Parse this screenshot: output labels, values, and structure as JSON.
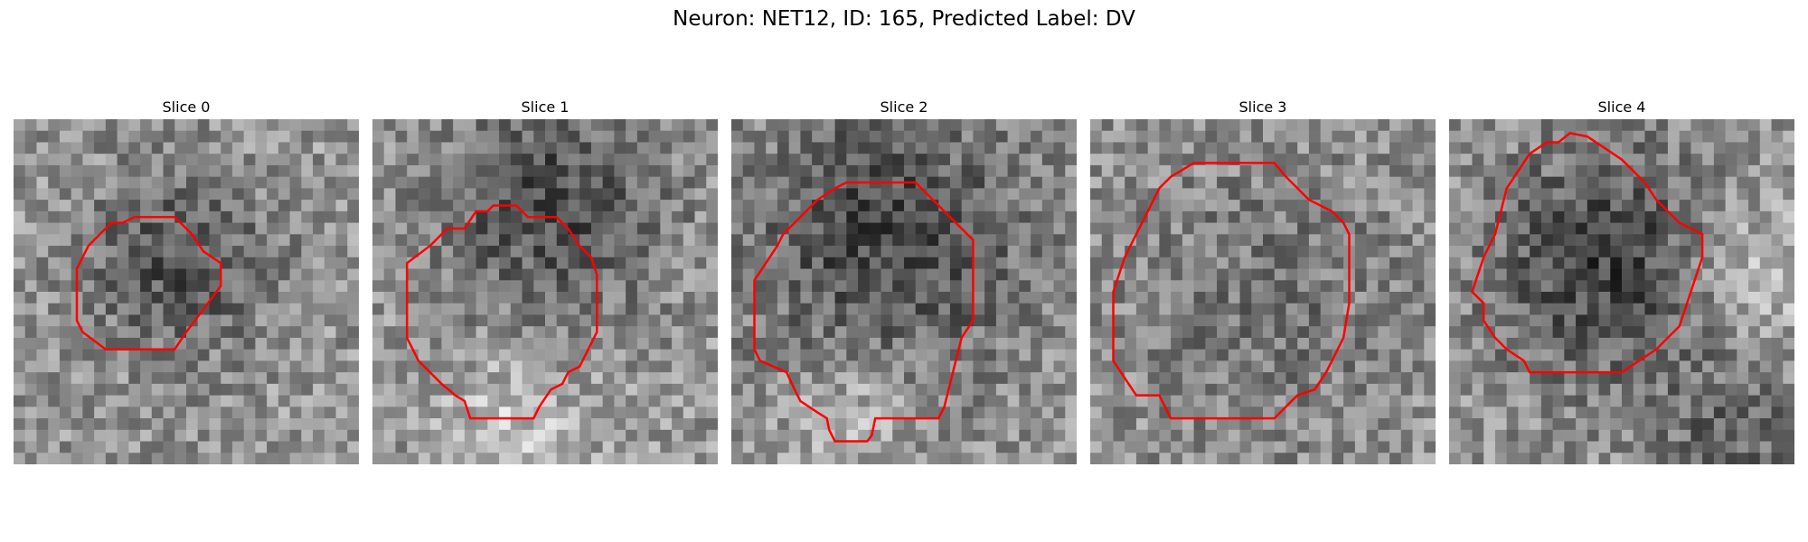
{
  "figure": {
    "title": "Neuron: NET12, ID: 165, Predicted Label: DV",
    "contour_color": "#ff0000"
  },
  "panels": [
    {
      "title": "Slice 0"
    },
    {
      "title": "Slice 1"
    },
    {
      "title": "Slice 2"
    },
    {
      "title": "Slice 3"
    },
    {
      "title": "Slice 4"
    }
  ]
}
